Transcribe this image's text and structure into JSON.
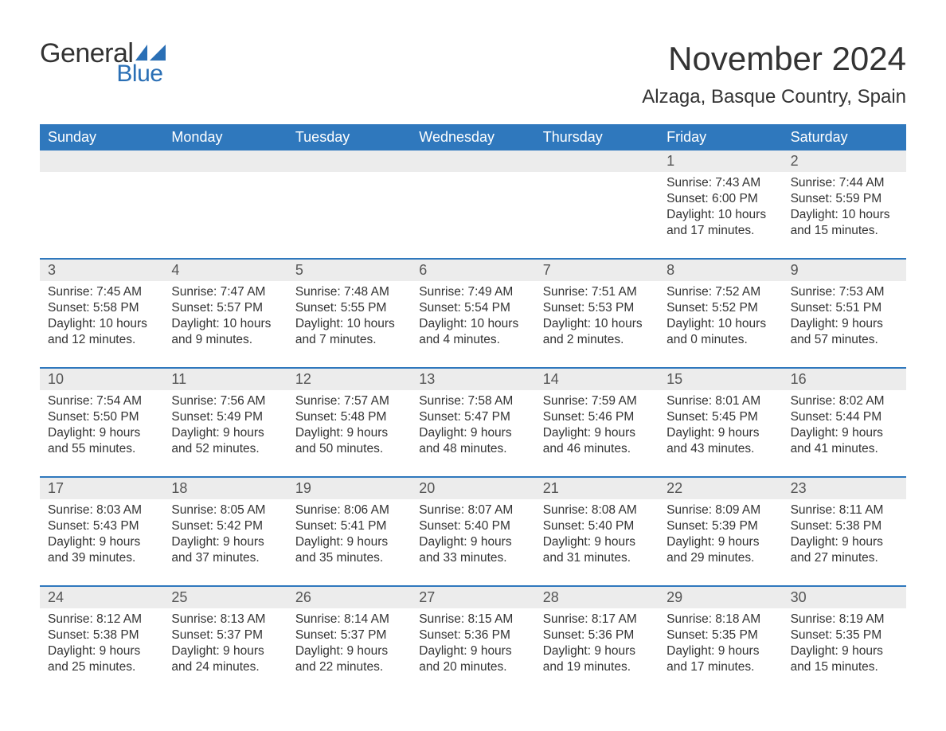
{
  "logo": {
    "text_general": "General",
    "text_blue": "Blue"
  },
  "header": {
    "month_title": "November 2024",
    "location": "Alzaga, Basque Country, Spain"
  },
  "colors": {
    "header_bg": "#2f78bd",
    "header_text": "#ffffff",
    "daynum_bg": "#ececec",
    "daynum_text": "#555555",
    "body_text": "#333333",
    "week_divider": "#2f78bd",
    "logo_blue": "#2a6fb5",
    "page_bg": "#ffffff"
  },
  "calendar": {
    "type": "table",
    "day_names": [
      "Sunday",
      "Monday",
      "Tuesday",
      "Wednesday",
      "Thursday",
      "Friday",
      "Saturday"
    ],
    "weeks": [
      {
        "days": [
          {
            "num": "",
            "sunrise": "",
            "sunset": "",
            "daylight": ""
          },
          {
            "num": "",
            "sunrise": "",
            "sunset": "",
            "daylight": ""
          },
          {
            "num": "",
            "sunrise": "",
            "sunset": "",
            "daylight": ""
          },
          {
            "num": "",
            "sunrise": "",
            "sunset": "",
            "daylight": ""
          },
          {
            "num": "",
            "sunrise": "",
            "sunset": "",
            "daylight": ""
          },
          {
            "num": "1",
            "sunrise": "Sunrise: 7:43 AM",
            "sunset": "Sunset: 6:00 PM",
            "daylight": "Daylight: 10 hours and 17 minutes."
          },
          {
            "num": "2",
            "sunrise": "Sunrise: 7:44 AM",
            "sunset": "Sunset: 5:59 PM",
            "daylight": "Daylight: 10 hours and 15 minutes."
          }
        ]
      },
      {
        "days": [
          {
            "num": "3",
            "sunrise": "Sunrise: 7:45 AM",
            "sunset": "Sunset: 5:58 PM",
            "daylight": "Daylight: 10 hours and 12 minutes."
          },
          {
            "num": "4",
            "sunrise": "Sunrise: 7:47 AM",
            "sunset": "Sunset: 5:57 PM",
            "daylight": "Daylight: 10 hours and 9 minutes."
          },
          {
            "num": "5",
            "sunrise": "Sunrise: 7:48 AM",
            "sunset": "Sunset: 5:55 PM",
            "daylight": "Daylight: 10 hours and 7 minutes."
          },
          {
            "num": "6",
            "sunrise": "Sunrise: 7:49 AM",
            "sunset": "Sunset: 5:54 PM",
            "daylight": "Daylight: 10 hours and 4 minutes."
          },
          {
            "num": "7",
            "sunrise": "Sunrise: 7:51 AM",
            "sunset": "Sunset: 5:53 PM",
            "daylight": "Daylight: 10 hours and 2 minutes."
          },
          {
            "num": "8",
            "sunrise": "Sunrise: 7:52 AM",
            "sunset": "Sunset: 5:52 PM",
            "daylight": "Daylight: 10 hours and 0 minutes."
          },
          {
            "num": "9",
            "sunrise": "Sunrise: 7:53 AM",
            "sunset": "Sunset: 5:51 PM",
            "daylight": "Daylight: 9 hours and 57 minutes."
          }
        ]
      },
      {
        "days": [
          {
            "num": "10",
            "sunrise": "Sunrise: 7:54 AM",
            "sunset": "Sunset: 5:50 PM",
            "daylight": "Daylight: 9 hours and 55 minutes."
          },
          {
            "num": "11",
            "sunrise": "Sunrise: 7:56 AM",
            "sunset": "Sunset: 5:49 PM",
            "daylight": "Daylight: 9 hours and 52 minutes."
          },
          {
            "num": "12",
            "sunrise": "Sunrise: 7:57 AM",
            "sunset": "Sunset: 5:48 PM",
            "daylight": "Daylight: 9 hours and 50 minutes."
          },
          {
            "num": "13",
            "sunrise": "Sunrise: 7:58 AM",
            "sunset": "Sunset: 5:47 PM",
            "daylight": "Daylight: 9 hours and 48 minutes."
          },
          {
            "num": "14",
            "sunrise": "Sunrise: 7:59 AM",
            "sunset": "Sunset: 5:46 PM",
            "daylight": "Daylight: 9 hours and 46 minutes."
          },
          {
            "num": "15",
            "sunrise": "Sunrise: 8:01 AM",
            "sunset": "Sunset: 5:45 PM",
            "daylight": "Daylight: 9 hours and 43 minutes."
          },
          {
            "num": "16",
            "sunrise": "Sunrise: 8:02 AM",
            "sunset": "Sunset: 5:44 PM",
            "daylight": "Daylight: 9 hours and 41 minutes."
          }
        ]
      },
      {
        "days": [
          {
            "num": "17",
            "sunrise": "Sunrise: 8:03 AM",
            "sunset": "Sunset: 5:43 PM",
            "daylight": "Daylight: 9 hours and 39 minutes."
          },
          {
            "num": "18",
            "sunrise": "Sunrise: 8:05 AM",
            "sunset": "Sunset: 5:42 PM",
            "daylight": "Daylight: 9 hours and 37 minutes."
          },
          {
            "num": "19",
            "sunrise": "Sunrise: 8:06 AM",
            "sunset": "Sunset: 5:41 PM",
            "daylight": "Daylight: 9 hours and 35 minutes."
          },
          {
            "num": "20",
            "sunrise": "Sunrise: 8:07 AM",
            "sunset": "Sunset: 5:40 PM",
            "daylight": "Daylight: 9 hours and 33 minutes."
          },
          {
            "num": "21",
            "sunrise": "Sunrise: 8:08 AM",
            "sunset": "Sunset: 5:40 PM",
            "daylight": "Daylight: 9 hours and 31 minutes."
          },
          {
            "num": "22",
            "sunrise": "Sunrise: 8:09 AM",
            "sunset": "Sunset: 5:39 PM",
            "daylight": "Daylight: 9 hours and 29 minutes."
          },
          {
            "num": "23",
            "sunrise": "Sunrise: 8:11 AM",
            "sunset": "Sunset: 5:38 PM",
            "daylight": "Daylight: 9 hours and 27 minutes."
          }
        ]
      },
      {
        "days": [
          {
            "num": "24",
            "sunrise": "Sunrise: 8:12 AM",
            "sunset": "Sunset: 5:38 PM",
            "daylight": "Daylight: 9 hours and 25 minutes."
          },
          {
            "num": "25",
            "sunrise": "Sunrise: 8:13 AM",
            "sunset": "Sunset: 5:37 PM",
            "daylight": "Daylight: 9 hours and 24 minutes."
          },
          {
            "num": "26",
            "sunrise": "Sunrise: 8:14 AM",
            "sunset": "Sunset: 5:37 PM",
            "daylight": "Daylight: 9 hours and 22 minutes."
          },
          {
            "num": "27",
            "sunrise": "Sunrise: 8:15 AM",
            "sunset": "Sunset: 5:36 PM",
            "daylight": "Daylight: 9 hours and 20 minutes."
          },
          {
            "num": "28",
            "sunrise": "Sunrise: 8:17 AM",
            "sunset": "Sunset: 5:36 PM",
            "daylight": "Daylight: 9 hours and 19 minutes."
          },
          {
            "num": "29",
            "sunrise": "Sunrise: 8:18 AM",
            "sunset": "Sunset: 5:35 PM",
            "daylight": "Daylight: 9 hours and 17 minutes."
          },
          {
            "num": "30",
            "sunrise": "Sunrise: 8:19 AM",
            "sunset": "Sunset: 5:35 PM",
            "daylight": "Daylight: 9 hours and 15 minutes."
          }
        ]
      }
    ]
  }
}
